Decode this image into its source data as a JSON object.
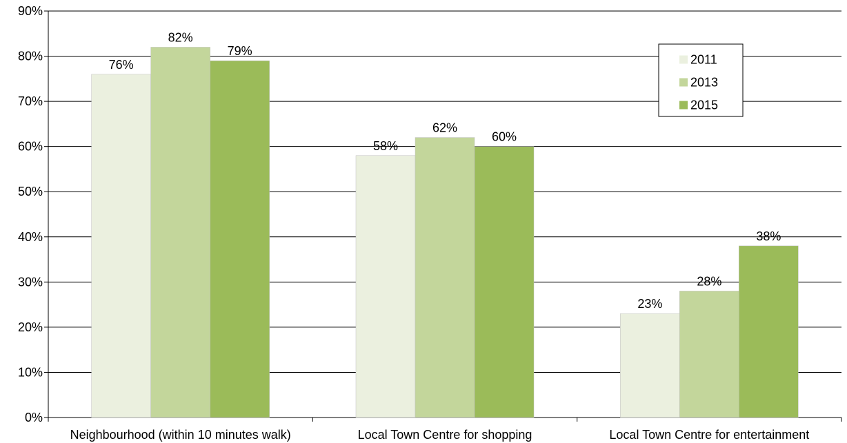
{
  "chart_data": {
    "type": "bar",
    "title": "",
    "xlabel": "",
    "ylabel": "",
    "categories": [
      "Neighbourhood (within 10 minutes walk)",
      "Local Town Centre for shopping",
      "Local Town Centre for entertainment"
    ],
    "series": [
      {
        "name": "2011",
        "values": [
          76,
          58,
          23
        ],
        "color": "#ebf0df"
      },
      {
        "name": "2013",
        "values": [
          82,
          62,
          28
        ],
        "color": "#c3d69b"
      },
      {
        "name": "2015",
        "values": [
          79,
          60,
          38
        ],
        "color": "#9bbb59"
      }
    ],
    "ylim": [
      0,
      90
    ],
    "yticks": [
      0,
      10,
      20,
      30,
      40,
      50,
      60,
      70,
      80,
      90
    ],
    "value_suffix": "%",
    "grid": true,
    "legend_position": "top-right"
  }
}
